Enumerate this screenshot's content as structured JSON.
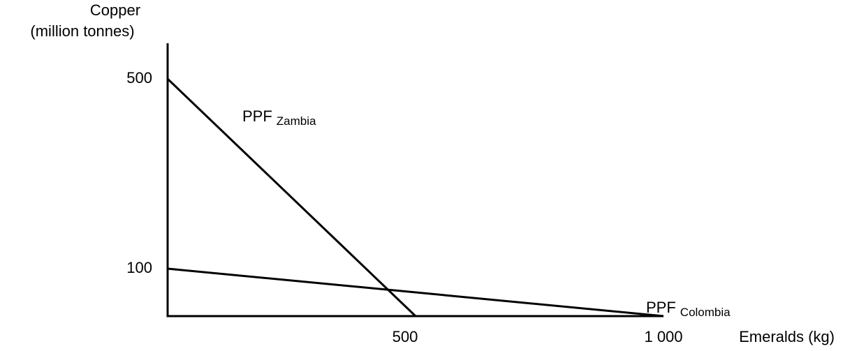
{
  "chart_data": {
    "type": "line",
    "ylabel": [
      "Copper",
      "(million tonnes)"
    ],
    "xlabel": "Emeralds (kg)",
    "xlim": [
      0,
      1000
    ],
    "ylim": [
      0,
      575
    ],
    "xticks": [
      500,
      {
        "value": 1000,
        "label": "1 000"
      }
    ],
    "yticks": [
      100,
      500
    ],
    "series": [
      {
        "label": "PPF",
        "name": "Zambia",
        "color": "#000000",
        "x": [
          0,
          500
        ],
        "values": [
          500,
          0
        ]
      },
      {
        "label": "PPF",
        "name": "Colombia",
        "color": "#000000",
        "x": [
          0,
          1000
        ],
        "values": [
          100,
          0
        ]
      }
    ]
  }
}
